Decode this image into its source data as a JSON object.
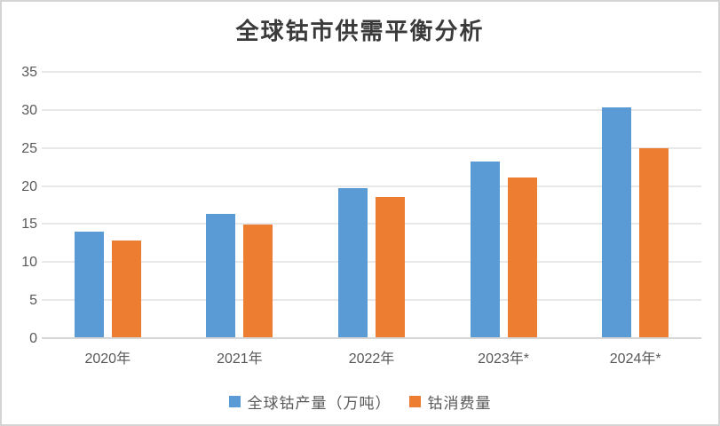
{
  "chart_data": {
    "type": "bar",
    "title": "全球钴市供需平衡分析",
    "categories": [
      "2020年",
      "2021年",
      "2022年",
      "2023年*",
      "2024年*"
    ],
    "series": [
      {
        "name": "全球钴产量（万吨）",
        "color": "#5B9BD5",
        "values": [
          14.1,
          16.5,
          19.8,
          23.3,
          30.4
        ]
      },
      {
        "name": "钴消费量",
        "color": "#ED7D31",
        "values": [
          13.0,
          15.1,
          18.7,
          21.2,
          25.1
        ]
      }
    ],
    "xlabel": "",
    "ylabel": "",
    "ylim": [
      0,
      35
    ],
    "ytick_step": 5,
    "yticks": [
      0,
      5,
      10,
      15,
      20,
      25,
      30,
      35
    ],
    "grid": true,
    "legend_position": "bottom",
    "background_color": "#ffffff",
    "frame_border_color": "#d4d4d4",
    "grid_color": "#e8e8e8",
    "axis_line_color": "#d6d6d6",
    "tick_label_color": "#595959",
    "title_color": "#3a3a3a"
  }
}
